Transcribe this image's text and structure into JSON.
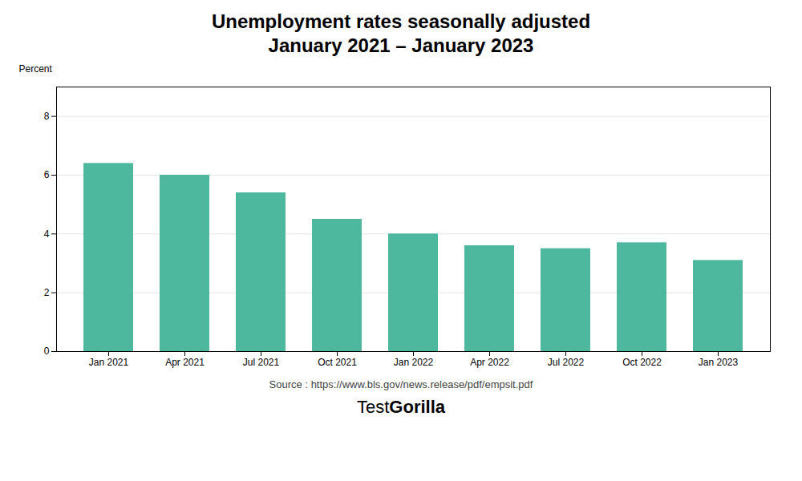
{
  "chart_data": {
    "type": "bar",
    "title": "Unemployment rates seasonally adjusted",
    "subtitle": "January 2021 – January 2023",
    "ylabel": "Percent",
    "categories": [
      "Jan 2021",
      "Apr 2021",
      "Jul 2021",
      "Oct 2021",
      "Jan 2022",
      "Apr 2022",
      "Jul 2022",
      "Oct 2022",
      "Jan 2023"
    ],
    "values": [
      6.4,
      6.0,
      5.4,
      4.5,
      4.0,
      3.6,
      3.5,
      3.7,
      3.1
    ],
    "color": "#4db89e",
    "ylim": [
      0,
      9
    ],
    "yticks": [
      0,
      2,
      4,
      6,
      8
    ],
    "grid": true,
    "annotations": [
      "Source : https://www.bls.gov/news.release/pdf/empsit.pdf",
      "Test",
      "Gorilla"
    ]
  }
}
